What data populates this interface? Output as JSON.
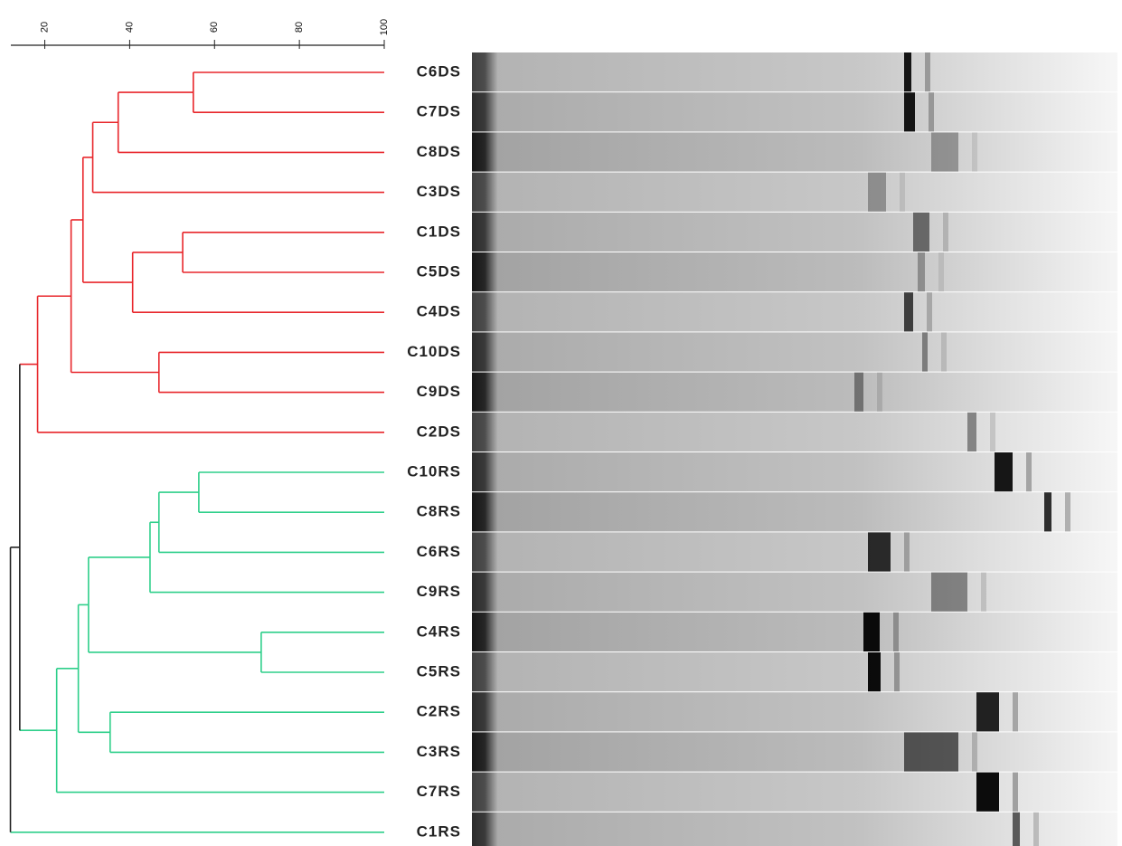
{
  "chart_data": {
    "type": "dendrogram",
    "xlim": [
      12,
      100
    ],
    "xticks": [
      20,
      40,
      60,
      80,
      100
    ],
    "leaves": [
      {
        "label": "C6DS",
        "color": "#e8262b"
      },
      {
        "label": "C7DS",
        "color": "#e8262b"
      },
      {
        "label": "C8DS",
        "color": "#e8262b"
      },
      {
        "label": "C3DS",
        "color": "#e8262b"
      },
      {
        "label": "C1DS",
        "color": "#e8262b"
      },
      {
        "label": "C5DS",
        "color": "#e8262b"
      },
      {
        "label": "C4DS",
        "color": "#e8262b"
      },
      {
        "label": "C10DS",
        "color": "#e8262b"
      },
      {
        "label": "C9DS",
        "color": "#e8262b"
      },
      {
        "label": "C2DS",
        "color": "#e8262b"
      },
      {
        "label": "C10RS",
        "color": "#2ecf8a"
      },
      {
        "label": "C8RS",
        "color": "#2ecf8a"
      },
      {
        "label": "C6RS",
        "color": "#2ecf8a"
      },
      {
        "label": "C9RS",
        "color": "#2ecf8a"
      },
      {
        "label": "C4RS",
        "color": "#2ecf8a"
      },
      {
        "label": "C5RS",
        "color": "#2ecf8a"
      },
      {
        "label": "C2RS",
        "color": "#2ecf8a"
      },
      {
        "label": "C3RS",
        "color": "#2ecf8a"
      },
      {
        "label": "C7RS",
        "color": "#2ecf8a"
      },
      {
        "label": "C1RS",
        "color": "#2ecf8a"
      }
    ],
    "merges": [
      {
        "left": 0,
        "right": 1,
        "value": 55,
        "color": "#e8262b"
      },
      {
        "left": 20,
        "right": 2,
        "value": 37.3,
        "color": "#e8262b"
      },
      {
        "left": 21,
        "right": 3,
        "value": 31.3,
        "color": "#e8262b"
      },
      {
        "left": 4,
        "right": 5,
        "value": 52.5,
        "color": "#e8262b"
      },
      {
        "left": 23,
        "right": 6,
        "value": 40.7,
        "color": "#e8262b"
      },
      {
        "left": 22,
        "right": 24,
        "value": 29,
        "color": "#e8262b"
      },
      {
        "left": 7,
        "right": 8,
        "value": 46.9,
        "color": "#e8262b"
      },
      {
        "left": 25,
        "right": 26,
        "value": 26.2,
        "color": "#e8262b"
      },
      {
        "left": 27,
        "right": 9,
        "value": 18.3,
        "color": "#e8262b"
      },
      {
        "left": 10,
        "right": 11,
        "value": 56.3,
        "color": "#2ecf8a"
      },
      {
        "left": 29,
        "right": 12,
        "value": 46.9,
        "color": "#2ecf8a"
      },
      {
        "left": 30,
        "right": 13,
        "value": 44.8,
        "color": "#2ecf8a"
      },
      {
        "left": 14,
        "right": 15,
        "value": 71,
        "color": "#2ecf8a"
      },
      {
        "left": 31,
        "right": 32,
        "value": 30.3,
        "color": "#2ecf8a"
      },
      {
        "left": 16,
        "right": 17,
        "value": 35.4,
        "color": "#2ecf8a"
      },
      {
        "left": 33,
        "right": 34,
        "value": 27.9,
        "color": "#2ecf8a"
      },
      {
        "left": 35,
        "right": 18,
        "value": 22.8,
        "color": "#2ecf8a"
      },
      {
        "left": 28,
        "right": 36,
        "value": 14.1,
        "color": "#222222"
      },
      {
        "left": 37,
        "right": 19,
        "value": 11.9,
        "color": "#222222"
      }
    ]
  }
}
